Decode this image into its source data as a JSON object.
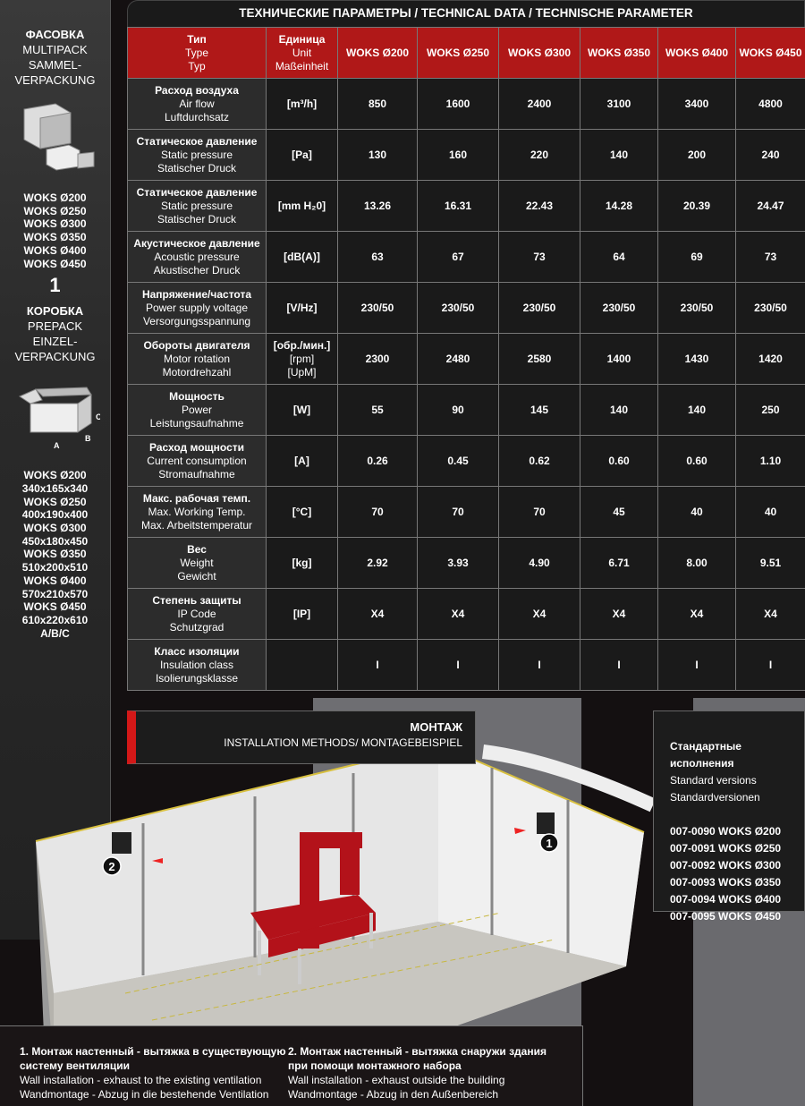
{
  "sidebar": {
    "multipack": {
      "title": "ФАСОВКА",
      "lines": [
        "MULTIPACK",
        "SAMMEL-",
        "VERPACKUNG"
      ],
      "models": [
        "WOKS Ø200",
        "WOKS Ø250",
        "WOKS Ø300",
        "WOKS Ø350",
        "WOKS Ø400",
        "WOKS Ø450"
      ],
      "qty": "1"
    },
    "prepack": {
      "title": "КОРОБКА",
      "lines": [
        "PREPACK",
        "EINZEL-",
        "VERPACKUNG"
      ],
      "dims_labels": [
        "A",
        "B",
        "C"
      ],
      "sizes": [
        "WOKS Ø200",
        "340x165x340",
        "WOKS Ø250",
        "400x190x400",
        "WOKS Ø300",
        "450x180x450",
        "WOKS Ø350",
        "510x200x510",
        "WOKS Ø400",
        "570x210x570",
        "WOKS Ø450",
        "610x220x610",
        "A/B/C"
      ]
    }
  },
  "table": {
    "title": "ТЕХНИЧЕСКИЕ ПАРАМЕТРЫ / TECHNICAL DATA / TECHNISCHE PARAMETER",
    "header": {
      "type": [
        "Тип",
        "Type",
        "Typ"
      ],
      "unit": [
        "Единица",
        "Unit",
        "Maßeinheit"
      ],
      "models": [
        "WOKS Ø200",
        "WOKS Ø250",
        "WOKS Ø300",
        "WOKS Ø350",
        "WOKS Ø400",
        "WOKS Ø450"
      ]
    },
    "rows": [
      {
        "name": [
          "Расход воздуха",
          "Air flow",
          "Luftdurchsatz"
        ],
        "unit": [
          "[m³/h]"
        ],
        "values": [
          "850",
          "1600",
          "2400",
          "3100",
          "3400",
          "4800"
        ]
      },
      {
        "name": [
          "Статическое давление",
          "Static pressure",
          "Statischer Druck"
        ],
        "unit": [
          "[Pa]"
        ],
        "values": [
          "130",
          "160",
          "220",
          "140",
          "200",
          "240"
        ]
      },
      {
        "name": [
          "Статическое давление",
          "Static pressure",
          "Statischer Druck"
        ],
        "unit": [
          "[mm H₂0]"
        ],
        "values": [
          "13.26",
          "16.31",
          "22.43",
          "14.28",
          "20.39",
          "24.47"
        ]
      },
      {
        "name": [
          "Акустическое давление",
          "Acoustic pressure",
          "Akustischer Druck"
        ],
        "unit": [
          "[dB(A)]"
        ],
        "values": [
          "63",
          "67",
          "73",
          "64",
          "69",
          "73"
        ]
      },
      {
        "name": [
          "Напряжение/частота",
          "Power supply voltage",
          "Versorgungsspannung"
        ],
        "unit": [
          "[V/Hz]"
        ],
        "values": [
          "230/50",
          "230/50",
          "230/50",
          "230/50",
          "230/50",
          "230/50"
        ]
      },
      {
        "name": [
          "Обороты двигателя",
          "Motor rotation",
          "Motordrehzahl"
        ],
        "unit": [
          "[обр./мин.]",
          "[rpm]",
          "[UpM]"
        ],
        "values": [
          "2300",
          "2480",
          "2580",
          "1400",
          "1430",
          "1420"
        ]
      },
      {
        "name": [
          "Мощность",
          "Power",
          "Leistungsaufnahme"
        ],
        "unit": [
          "[W]"
        ],
        "values": [
          "55",
          "90",
          "145",
          "140",
          "140",
          "250"
        ]
      },
      {
        "name": [
          "Расход мощности",
          "Current consumption",
          "Stromaufnahme"
        ],
        "unit": [
          "[A]"
        ],
        "values": [
          "0.26",
          "0.45",
          "0.62",
          "0.60",
          "0.60",
          "1.10"
        ]
      },
      {
        "name": [
          "Макс. рабочая темп.",
          "Max. Working Temp.",
          "Max. Arbeitstemperatur"
        ],
        "unit": [
          "[°C]"
        ],
        "values": [
          "70",
          "70",
          "70",
          "45",
          "40",
          "40"
        ]
      },
      {
        "name": [
          "Вес",
          "Weight",
          "Gewicht"
        ],
        "unit": [
          "[kg]"
        ],
        "values": [
          "2.92",
          "3.93",
          "4.90",
          "6.71",
          "8.00",
          "9.51"
        ]
      },
      {
        "name": [
          "Степень защиты",
          "IP Code",
          "Schutzgrad"
        ],
        "unit": [
          "[IP]"
        ],
        "values": [
          "X4",
          "X4",
          "X4",
          "X4",
          "X4",
          "X4"
        ]
      },
      {
        "name": [
          "Класс изоляции",
          "Insulation class",
          "Isolierungsklasse"
        ],
        "unit": [],
        "values": [
          "I",
          "I",
          "I",
          "I",
          "I",
          "I"
        ]
      }
    ]
  },
  "installation": {
    "title": "МОНТАЖ",
    "subtitle": "INSTALLATION METHODS/ MONTAGEBEISPIEL",
    "markers": [
      "1",
      "2"
    ]
  },
  "standard": {
    "title": "Стандартные исполнения",
    "en": "Standard versions",
    "de": "Standardversionen",
    "items": [
      "007-0090 WOKS Ø200",
      "007-0091 WOKS Ø250",
      "007-0092 WOKS Ø300",
      "007-0093 WOKS Ø350",
      "007-0094 WOKS Ø400",
      "007-0095 WOKS Ø450"
    ]
  },
  "captions": [
    {
      "ru": "1. Монтаж настенный - вытяжка в существующую систему вентиляции",
      "en": "Wall installation - exhaust to the existing ventilation",
      "de": "Wandmontage - Abzug in die bestehende Ventilation"
    },
    {
      "ru": "2. Монтаж настенный - вытяжка снаружи здания при помощи монтажного набора",
      "en": "Wall installation - exhaust outside the building",
      "de": "Wandmontage - Abzug in den Außenbereich"
    }
  ],
  "colors": {
    "accent": "#b01818",
    "background": "#141011",
    "cell": "#1a1a1a"
  }
}
